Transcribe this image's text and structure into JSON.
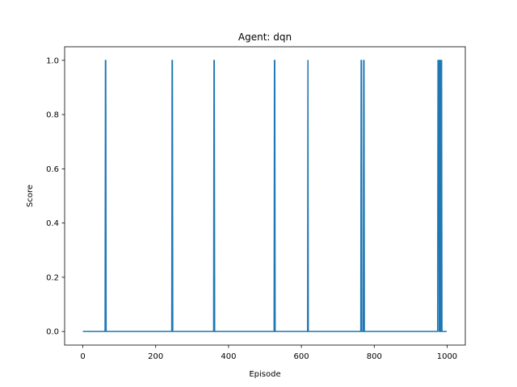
{
  "chart_data": {
    "type": "line",
    "title": "Agent: dqn",
    "xlabel": "Episode",
    "ylabel": "Score",
    "xlim": [
      -50,
      1050
    ],
    "ylim": [
      -0.05,
      1.05
    ],
    "xticks": [
      0,
      200,
      400,
      600,
      800,
      1000
    ],
    "xtick_labels": [
      "0",
      "200",
      "400",
      "600",
      "800",
      "1000"
    ],
    "yticks": [
      0.0,
      0.2,
      0.4,
      0.6,
      0.8,
      1.0
    ],
    "ytick_labels": [
      "0.0",
      "0.2",
      "0.4",
      "0.6",
      "0.8",
      "1.0"
    ],
    "grid": false,
    "line_color": "#1f77b4",
    "series": [
      {
        "episodes": [
          0,
          999
        ],
        "baseline": 0,
        "spikes": [
          62,
          63,
          245,
          246,
          360,
          361,
          526,
          527,
          618,
          764,
          765,
          771,
          772,
          975,
          976,
          977,
          979,
          981,
          983,
          985
        ]
      }
    ]
  }
}
